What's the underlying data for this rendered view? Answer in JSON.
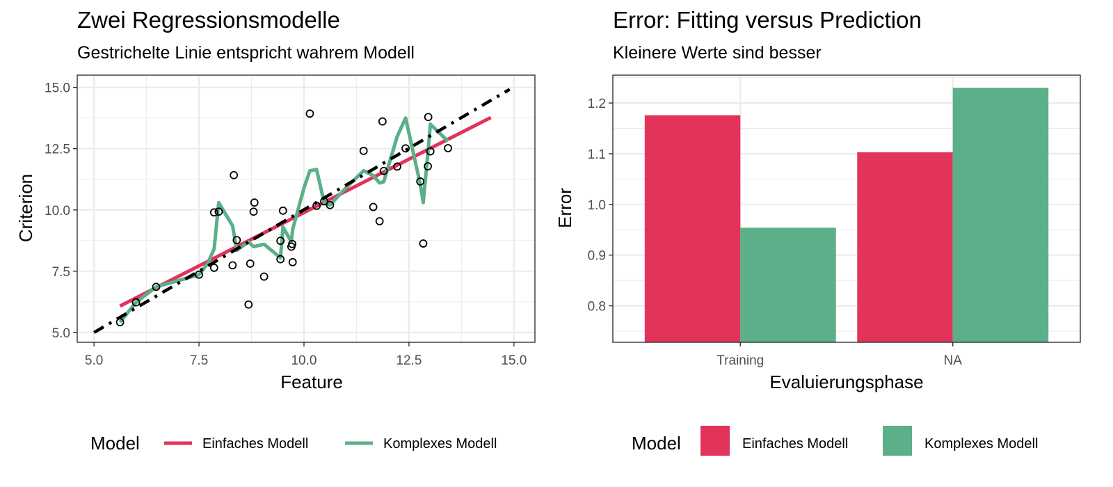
{
  "colors": {
    "einfach": "#E2335A",
    "komplex": "#5BAF89",
    "true_line": "#000000",
    "grid": "#EBEBEB",
    "panel_border": "#333333"
  },
  "chart_data": [
    {
      "type": "scatter",
      "title": "Zwei Regressionsmodelle",
      "subtitle": "Gestrichelte Linie entspricht wahrem Modell",
      "xlabel": "Feature",
      "ylabel": "Criterion",
      "xlim": [
        4.6,
        15.5
      ],
      "ylim": [
        4.6,
        15.5
      ],
      "xticks": [
        "5.0",
        "7.5",
        "10.0",
        "12.5",
        "15.0"
      ],
      "yticks": [
        "5.0",
        "7.5",
        "10.0",
        "12.5",
        "15.0"
      ],
      "xtick_values": [
        5,
        7.5,
        10,
        12.5,
        15
      ],
      "ytick_values": [
        5,
        7.5,
        10,
        12.5,
        15
      ],
      "grid": true,
      "legend_position": "bottom",
      "legend_title": "Model",
      "points": [
        {
          "x": 5.62,
          "y": 5.42
        },
        {
          "x": 6.0,
          "y": 6.23
        },
        {
          "x": 6.48,
          "y": 6.86
        },
        {
          "x": 7.5,
          "y": 7.36
        },
        {
          "x": 7.86,
          "y": 7.64
        },
        {
          "x": 7.86,
          "y": 9.9
        },
        {
          "x": 7.97,
          "y": 9.93
        },
        {
          "x": 8.3,
          "y": 7.74
        },
        {
          "x": 8.33,
          "y": 11.42
        },
        {
          "x": 8.4,
          "y": 8.77
        },
        {
          "x": 8.68,
          "y": 6.14
        },
        {
          "x": 8.72,
          "y": 7.81
        },
        {
          "x": 8.8,
          "y": 9.93
        },
        {
          "x": 8.82,
          "y": 10.3
        },
        {
          "x": 9.05,
          "y": 7.28
        },
        {
          "x": 9.44,
          "y": 8.74
        },
        {
          "x": 9.44,
          "y": 7.99
        },
        {
          "x": 9.5,
          "y": 9.97
        },
        {
          "x": 9.7,
          "y": 8.5
        },
        {
          "x": 9.72,
          "y": 8.61
        },
        {
          "x": 9.73,
          "y": 7.87
        },
        {
          "x": 10.14,
          "y": 13.93
        },
        {
          "x": 10.3,
          "y": 10.17
        },
        {
          "x": 10.48,
          "y": 10.35
        },
        {
          "x": 10.62,
          "y": 10.2
        },
        {
          "x": 11.42,
          "y": 12.41
        },
        {
          "x": 11.65,
          "y": 10.12
        },
        {
          "x": 11.8,
          "y": 9.54
        },
        {
          "x": 11.87,
          "y": 13.61
        },
        {
          "x": 11.9,
          "y": 11.59
        },
        {
          "x": 12.22,
          "y": 11.77
        },
        {
          "x": 12.42,
          "y": 12.51
        },
        {
          "x": 12.77,
          "y": 11.16
        },
        {
          "x": 12.84,
          "y": 8.63
        },
        {
          "x": 12.95,
          "y": 11.78
        },
        {
          "x": 12.96,
          "y": 13.79
        },
        {
          "x": 13.01,
          "y": 12.39
        },
        {
          "x": 13.43,
          "y": 12.52
        }
      ],
      "true_line": {
        "x": [
          5.0,
          14.9
        ],
        "y": [
          5.0,
          14.92
        ]
      },
      "series": [
        {
          "name": "Einfaches Modell",
          "x": [
            5.62,
            14.45
          ],
          "y": [
            6.08,
            13.77
          ]
        },
        {
          "name": "Komplexes Modell",
          "x": [
            5.62,
            6.0,
            6.48,
            7.5,
            7.7,
            7.86,
            7.97,
            8.3,
            8.4,
            8.68,
            8.8,
            9.05,
            9.44,
            9.5,
            9.7,
            9.73,
            10.0,
            10.14,
            10.3,
            10.48,
            10.62,
            11.0,
            11.42,
            11.65,
            11.8,
            11.9,
            12.22,
            12.42,
            12.77,
            12.84,
            12.96,
            13.01,
            13.43
          ],
          "y": [
            5.42,
            6.23,
            6.86,
            7.36,
            7.8,
            8.4,
            10.3,
            9.35,
            8.35,
            8.7,
            8.5,
            8.6,
            8.05,
            9.3,
            8.7,
            9.2,
            10.9,
            11.6,
            11.65,
            10.3,
            10.2,
            10.9,
            11.6,
            11.4,
            11.1,
            11.15,
            13.0,
            13.75,
            11.05,
            10.3,
            12.5,
            13.5,
            12.8
          ]
        }
      ]
    },
    {
      "type": "bar",
      "title": "Error: Fitting versus Prediction",
      "subtitle": "Kleinere Werte sind besser",
      "xlabel": "Evaluierungsphase",
      "ylabel": "Error",
      "ylim": [
        0.728,
        1.255
      ],
      "yticks": [
        "0.8",
        "0.9",
        "1.0",
        "1.1",
        "1.2"
      ],
      "ytick_values": [
        0.8,
        0.9,
        1.0,
        1.1,
        1.2
      ],
      "categories": [
        "Training",
        "NA"
      ],
      "grid": true,
      "legend_position": "bottom",
      "legend_title": "Model",
      "series": [
        {
          "name": "Einfaches Modell",
          "values": [
            1.176,
            1.103
          ]
        },
        {
          "name": "Komplexes Modell",
          "values": [
            0.954,
            1.23
          ]
        }
      ]
    }
  ]
}
